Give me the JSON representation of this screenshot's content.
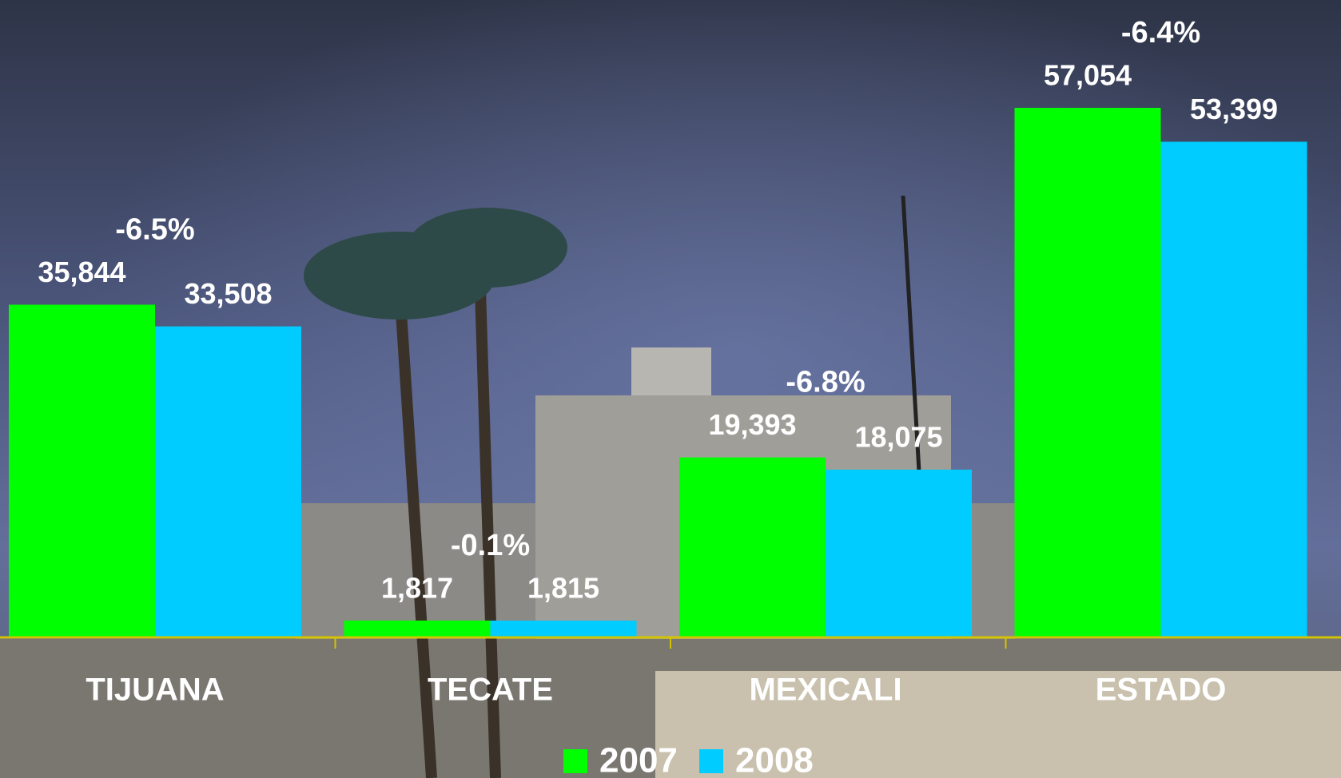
{
  "chart_data": {
    "type": "bar",
    "categories": [
      "TIJUANA",
      "TECATE",
      "MEXICALI",
      "ESTADO"
    ],
    "series": [
      {
        "name": "2007",
        "color": "#00ff00",
        "values": [
          35844,
          1817,
          19393,
          57054
        ],
        "value_labels": [
          "35,844",
          "1,817",
          "19,393",
          "57,054"
        ]
      },
      {
        "name": "2008",
        "color": "#00ccff",
        "values": [
          33508,
          1815,
          18075,
          53399
        ],
        "value_labels": [
          "33,508",
          "1,815",
          "18,075",
          "53,399"
        ]
      }
    ],
    "annotations": [
      "-6.5%",
      "-0.1%",
      "-6.8%",
      "-6.4%"
    ]
  }
}
